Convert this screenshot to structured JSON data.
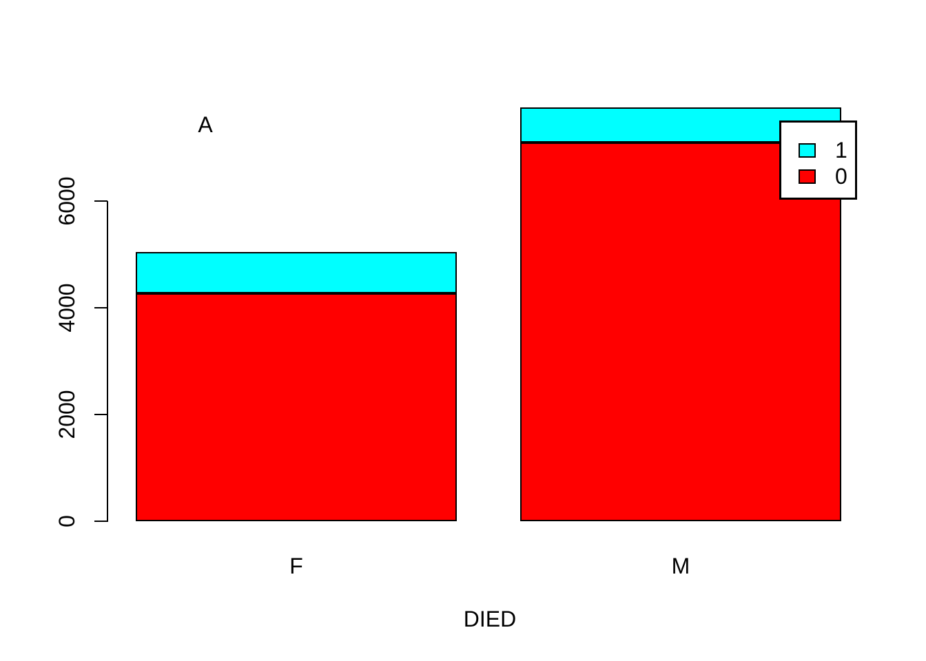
{
  "figure": {
    "title": "A",
    "xlabel": "DIED",
    "background": "#FFFFFF"
  },
  "axis": {
    "y_ticks": [
      "0",
      "2000",
      "4000",
      "6000"
    ],
    "x_labels": [
      "F",
      "M"
    ]
  },
  "legend": {
    "items": [
      {
        "label": "1",
        "color": "#00FFFF"
      },
      {
        "label": "0",
        "color": "#FF0000"
      }
    ]
  },
  "chart_data": {
    "type": "bar",
    "stacked": true,
    "title": "A",
    "xlabel": "DIED",
    "ylabel": "",
    "categories": [
      "F",
      "M"
    ],
    "series": [
      {
        "name": "0",
        "color": "#FF0000",
        "values": [
          4270,
          7100
        ]
      },
      {
        "name": "1",
        "color": "#00FFFF",
        "values": [
          775,
          655
        ]
      }
    ],
    "totals": [
      5045,
      7755
    ],
    "y_tick_values": [
      0,
      2000,
      4000,
      6000
    ],
    "ylim": [
      0,
      7800
    ],
    "grid": false,
    "bar_edge_color": "#000000",
    "legend_position": "top-right"
  }
}
